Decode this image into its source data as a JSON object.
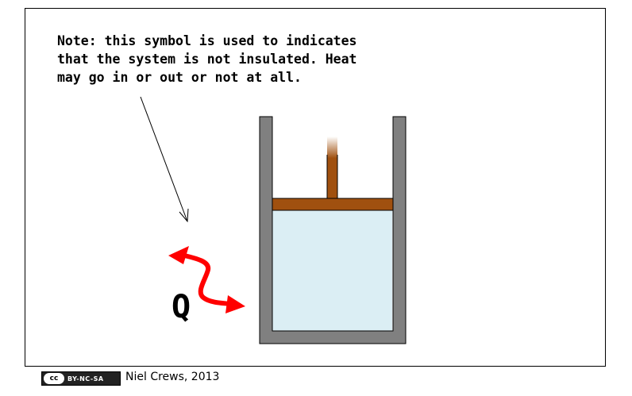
{
  "note": {
    "text": "Note: this symbol is used to indicates\nthat the system is not insulated. Heat\nmay go in or out or not at all."
  },
  "heat_label": "Q",
  "license": {
    "cc_text": "cc",
    "badge_text": "BY-NC-SA"
  },
  "credit": "Niel Crews, 2013",
  "colors": {
    "container": "#808080",
    "gas": "#dbeef4",
    "piston": "#a0500f",
    "heat_arrow": "#ff0000"
  }
}
